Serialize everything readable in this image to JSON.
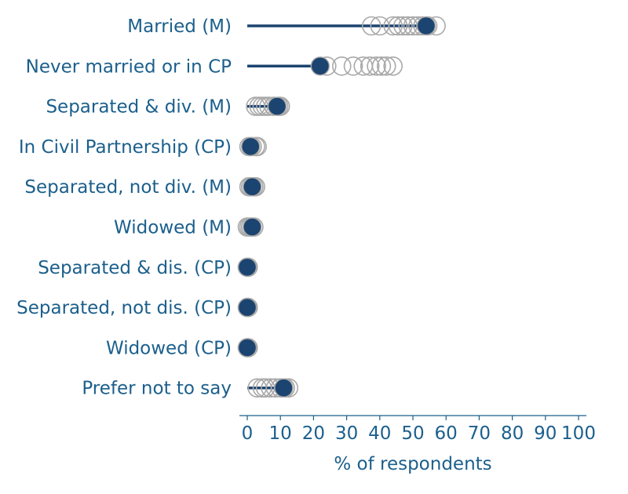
{
  "chart_data": {
    "type": "scatter",
    "title": "",
    "xlabel": "% of respondents",
    "ylabel": "",
    "xlim": [
      0,
      100
    ],
    "xticks": [
      "0",
      "10",
      "20",
      "30",
      "40",
      "50",
      "60",
      "70",
      "80",
      "90",
      "100"
    ],
    "grid": false,
    "colors": {
      "highlight": "#1c4470",
      "comparison": "#a9a9a9",
      "text": "#1b5f8c"
    },
    "categories": [
      {
        "label": "Married (M)",
        "value": 54,
        "comparisons": [
          37.5,
          40,
          44,
          45.5,
          47,
          48.5,
          50,
          51.5,
          53,
          54.5,
          57
        ]
      },
      {
        "label": "Never married or in CP",
        "value": 22,
        "comparisons": [
          24,
          28.5,
          32,
          35,
          37,
          39,
          40.5,
          42,
          44
        ]
      },
      {
        "label": "Separated & div. (M)",
        "value": 9,
        "comparisons": [
          2.5,
          3.5,
          4.5,
          5.5,
          6.5,
          8,
          9.5,
          10
        ]
      },
      {
        "label": "In Civil Partnership (CP)",
        "value": 1,
        "comparisons": [
          0.5,
          1.5,
          2.5,
          3
        ]
      },
      {
        "label": "Separated, not div. (M)",
        "value": 1.5,
        "comparisons": [
          0.5,
          1,
          2,
          2.5
        ]
      },
      {
        "label": "Widowed (M)",
        "value": 1.5,
        "comparisons": [
          0,
          0.5,
          1,
          2
        ]
      },
      {
        "label": "Separated & dis. (CP)",
        "value": 0,
        "comparisons": [
          0,
          0.3
        ]
      },
      {
        "label": "Separated, not dis. (CP)",
        "value": 0,
        "comparisons": [
          0,
          0.3
        ]
      },
      {
        "label": "Widowed (CP)",
        "value": 0,
        "comparisons": [
          0,
          0.3
        ]
      },
      {
        "label": "Prefer not to say",
        "value": 11,
        "comparisons": [
          3,
          4.5,
          5.5,
          7,
          8.5,
          10,
          11.5,
          12.5
        ]
      }
    ]
  }
}
